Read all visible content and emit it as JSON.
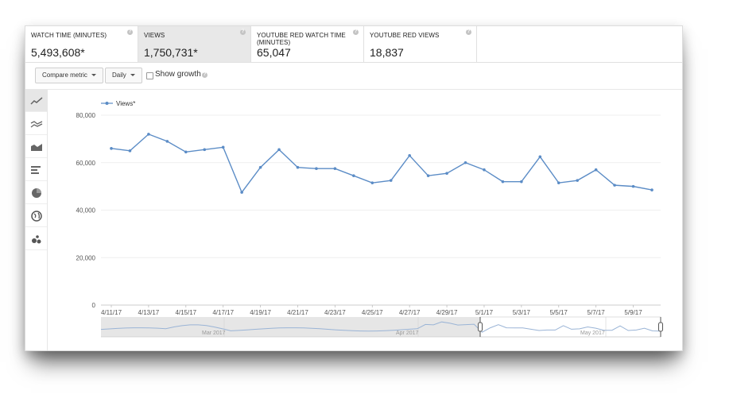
{
  "metrics": [
    {
      "label": "WATCH TIME (MINUTES)",
      "value": "5,493,608*",
      "selected": false
    },
    {
      "label": "VIEWS",
      "value": "1,750,731*",
      "selected": true
    },
    {
      "label": "YOUTUBE RED WATCH TIME (MINUTES)",
      "value": "65,047",
      "selected": false
    },
    {
      "label": "YOUTUBE RED VIEWS",
      "value": "18,837",
      "selected": false
    }
  ],
  "help_glyph": "?",
  "toolbar": {
    "compare_label": "Compare metric",
    "period_label": "Daily",
    "growth_label": "Show growth",
    "growth_checked": false
  },
  "sidebar": [
    {
      "icon": "line-chart-icon",
      "active": true
    },
    {
      "icon": "multi-line-chart-icon",
      "active": false
    },
    {
      "icon": "area-chart-icon",
      "active": false
    },
    {
      "icon": "bar-chart-icon",
      "active": false
    },
    {
      "icon": "pie-chart-icon",
      "active": false
    },
    {
      "icon": "globe-icon",
      "active": false
    },
    {
      "icon": "bubble-chart-icon",
      "active": false
    }
  ],
  "colors": {
    "accent": "#5b8cc6",
    "grid": "#eaeaea",
    "axis_text": "#555555"
  },
  "chart_data": {
    "type": "line",
    "title": "",
    "xlabel": "",
    "ylabel": "",
    "ylim": [
      0,
      80000
    ],
    "yticks": [
      "0",
      "20,000",
      "40,000",
      "60,000",
      "80,000"
    ],
    "xtick_labels": [
      "4/11/17",
      "4/13/17",
      "4/15/17",
      "4/17/17",
      "4/19/17",
      "4/21/17",
      "4/23/17",
      "4/25/17",
      "4/27/17",
      "4/29/17",
      "5/1/17",
      "5/3/17",
      "5/5/17",
      "5/7/17",
      "5/9/17"
    ],
    "legend": "top-left",
    "grid": true,
    "series": [
      {
        "name": "Views*",
        "x": [
          "4/11/17",
          "4/12/17",
          "4/13/17",
          "4/14/17",
          "4/15/17",
          "4/16/17",
          "4/17/17",
          "4/18/17",
          "4/19/17",
          "4/20/17",
          "4/21/17",
          "4/22/17",
          "4/23/17",
          "4/24/17",
          "4/25/17",
          "4/26/17",
          "4/27/17",
          "4/28/17",
          "4/29/17",
          "4/30/17",
          "5/1/17",
          "5/2/17",
          "5/3/17",
          "5/4/17",
          "5/5/17",
          "5/6/17",
          "5/7/17",
          "5/8/17",
          "5/9/17",
          "5/10/17"
        ],
        "values": [
          66000,
          65000,
          72000,
          69000,
          64500,
          65500,
          66500,
          47500,
          58000,
          65500,
          58000,
          57500,
          57500,
          54500,
          51500,
          52500,
          63000,
          54500,
          55500,
          60000,
          57000,
          52000,
          52000,
          62500,
          51500,
          52500,
          57000,
          50500,
          50000,
          48500
        ]
      }
    ]
  },
  "navigator": {
    "months": [
      "Mar 2017",
      "Apr 2017",
      "May 2017"
    ]
  }
}
